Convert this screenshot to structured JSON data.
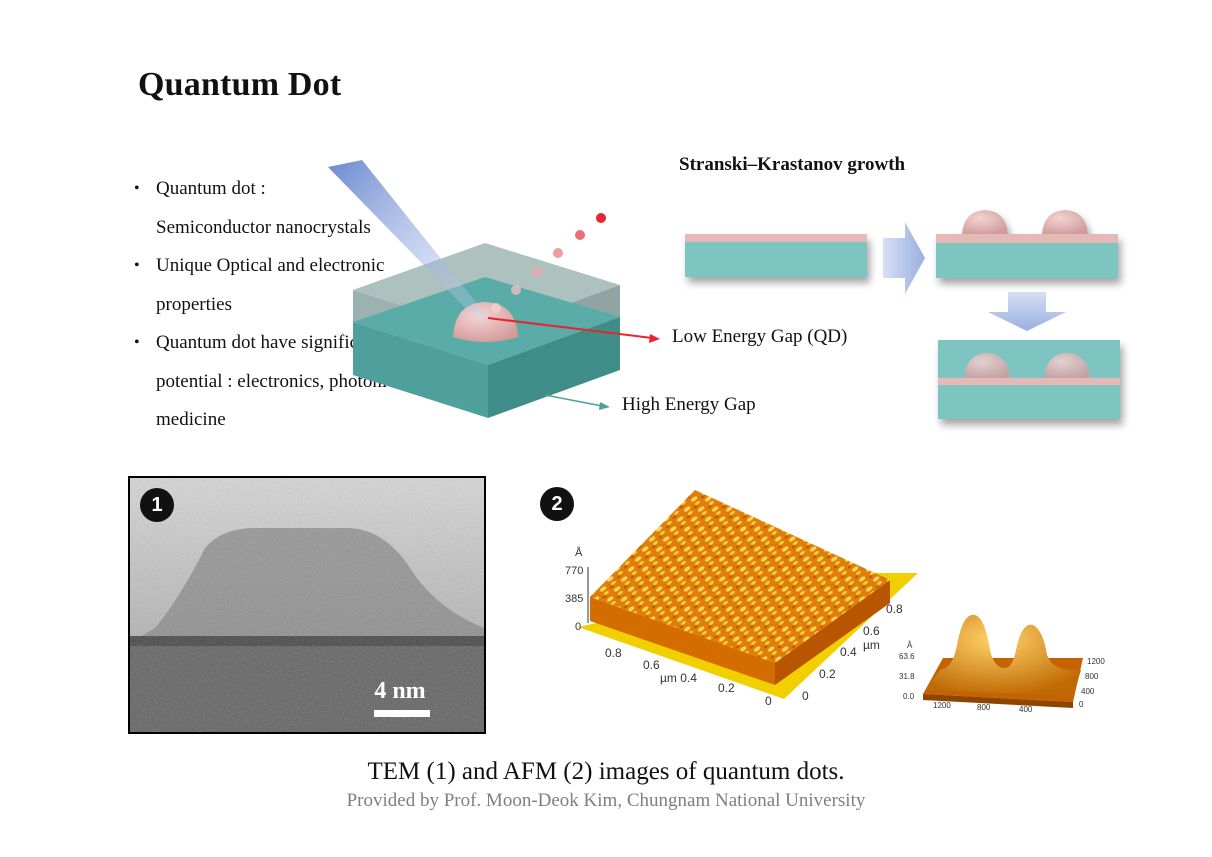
{
  "title": "Quantum Dot",
  "bullets": [
    {
      "line1": "Quantum dot :",
      "line2": "Semiconductor  nanocrystals"
    },
    {
      "line1": "Unique Optical and electronic",
      "line2": "properties"
    },
    {
      "line1": "Quantum dot have significant",
      "line2": "potential   : electronics, photonics, and",
      "line3": "medicine"
    }
  ],
  "diagram": {
    "low_label": "Low Energy Gap (QD)",
    "high_label": "High Energy  Gap"
  },
  "growth": {
    "title": "Stranski–Krastanov  growth"
  },
  "tem": {
    "badge": "1",
    "scale_label": "4 nm"
  },
  "afm": {
    "badge": "2",
    "unit": "Å",
    "z_ticks": [
      "770",
      "385",
      "0"
    ],
    "x_ticks": [
      "0.8",
      "0.6",
      "µm 0.4",
      "0.2",
      "0"
    ],
    "y_ticks": [
      "0",
      "0.2",
      "0.4",
      "0.6",
      "0.8"
    ],
    "y_unit": "µm",
    "small_z": [
      "63.6",
      "31.8",
      "0.0"
    ],
    "small_x": [
      "1200",
      "800",
      "400"
    ],
    "small_y": [
      "1200",
      "800",
      "400",
      "0"
    ]
  },
  "caption": "TEM (1) and AFM (2) images  of quantum dots.",
  "credit": "Provided by Prof. Moon-Deok Kim, Chungnam  National University",
  "colors": {
    "teal": "#7ec5c2",
    "pink": "#e6b9b9",
    "dot_red": "#e8252f",
    "arrow_blue": "#9aaee0",
    "afm_orange": "#e08a10"
  }
}
